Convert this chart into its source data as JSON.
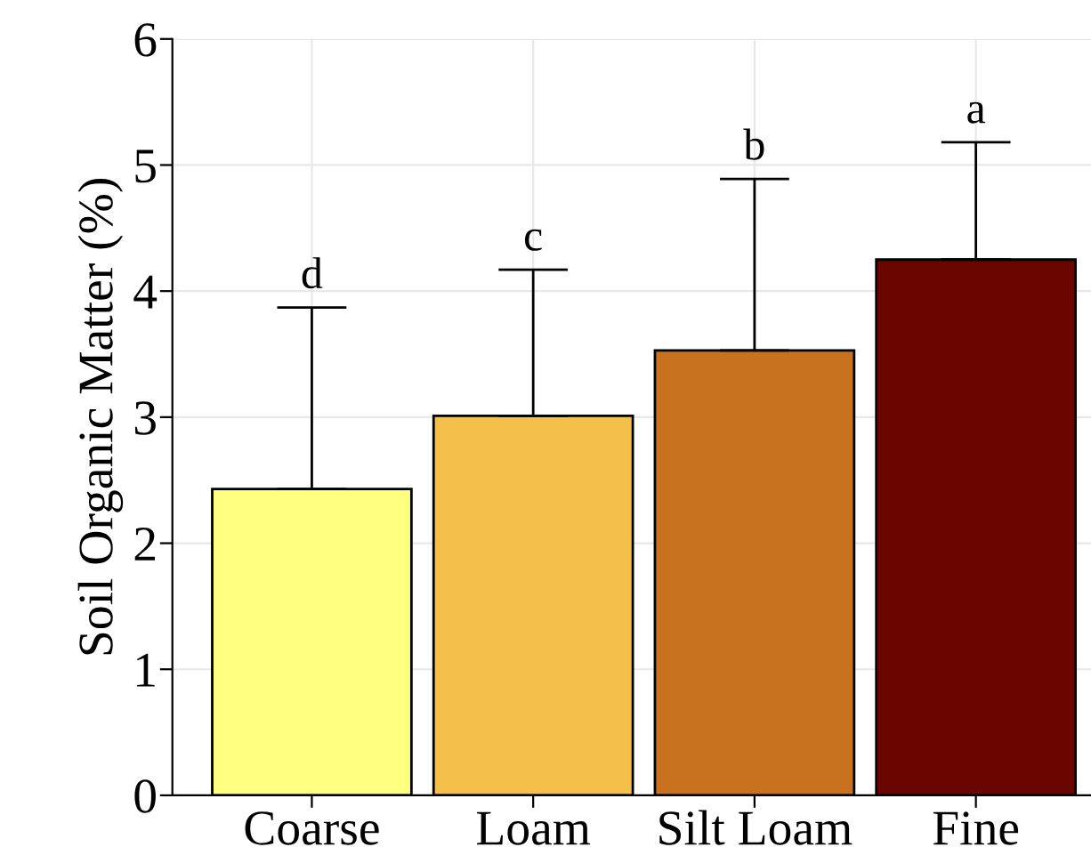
{
  "chart_data": {
    "type": "bar",
    "ylabel": "Soil Organic Matter (%)",
    "categories": [
      "Coarse",
      "Loam",
      "Silt Loam",
      "Fine"
    ],
    "values": [
      2.43,
      3.01,
      3.53,
      4.25
    ],
    "colors": [
      "#ffff80",
      "#f5c04a",
      "#c8711e",
      "#6b0500"
    ],
    "errors": [
      [
        2.43,
        3.87
      ],
      [
        3.01,
        4.17
      ],
      [
        3.53,
        4.89
      ],
      [
        4.25,
        5.18
      ]
    ],
    "ylim": [
      0,
      6
    ],
    "yticks": [
      0,
      1,
      2,
      3,
      4,
      5,
      6
    ],
    "grid": true,
    "annotations": [
      "d",
      "c",
      "b",
      "a"
    ]
  }
}
